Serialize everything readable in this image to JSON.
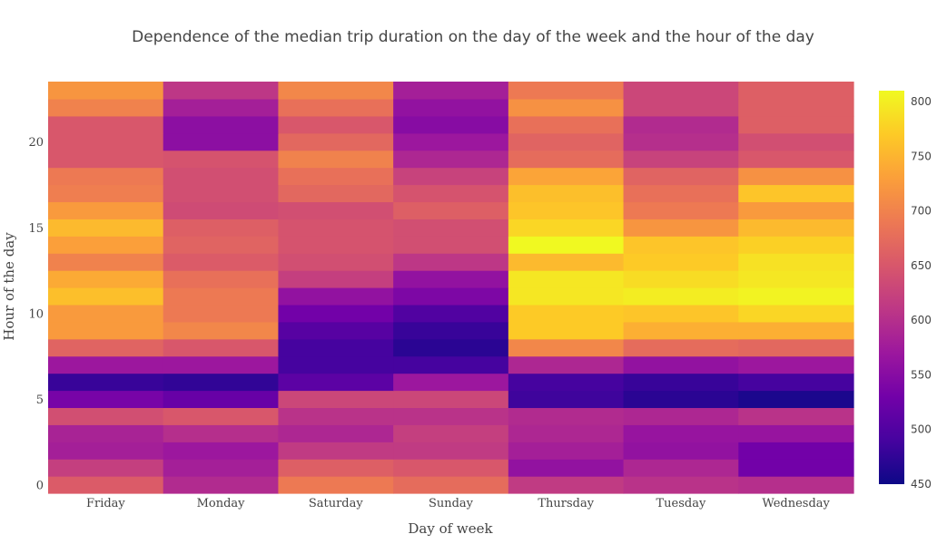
{
  "chart_data": {
    "type": "heatmap",
    "title": "Dependence of the median trip duration on the day of the week and the hour of the day",
    "xlabel": "Day of week",
    "ylabel": "Hour of the day",
    "categories": [
      "Friday",
      "Monday",
      "Saturday",
      "Sunday",
      "Thursday",
      "Tuesday",
      "Wednesday"
    ],
    "y": [
      0,
      1,
      2,
      3,
      4,
      5,
      6,
      7,
      8,
      9,
      10,
      11,
      12,
      13,
      14,
      15,
      16,
      17,
      18,
      19,
      20,
      21,
      22,
      23
    ],
    "yticks": [
      0,
      5,
      10,
      15,
      20
    ],
    "ylim": [
      -0.5,
      23.5
    ],
    "colorscale": "plasma",
    "zlim": [
      450,
      810
    ],
    "colorbar_ticks": [
      450,
      500,
      550,
      600,
      650,
      700,
      750,
      800
    ],
    "z": [
      [
        655,
        595,
        690,
        675,
        615,
        605,
        600
      ],
      [
        620,
        580,
        660,
        650,
        560,
        590,
        530
      ],
      [
        580,
        570,
        615,
        615,
        580,
        560,
        530
      ],
      [
        585,
        600,
        590,
        620,
        590,
        565,
        565
      ],
      [
        640,
        650,
        605,
        605,
        595,
        590,
        605
      ],
      [
        535,
        520,
        630,
        630,
        485,
        470,
        460
      ],
      [
        480,
        475,
        510,
        570,
        490,
        480,
        490
      ],
      [
        570,
        570,
        490,
        490,
        590,
        560,
        570
      ],
      [
        665,
        650,
        490,
        470,
        705,
        675,
        670
      ],
      [
        725,
        705,
        505,
        480,
        770,
        745,
        745
      ],
      [
        725,
        690,
        530,
        500,
        770,
        765,
        780
      ],
      [
        760,
        690,
        560,
        540,
        795,
        800,
        805
      ],
      [
        740,
        680,
        620,
        560,
        795,
        785,
        795
      ],
      [
        700,
        655,
        640,
        610,
        755,
        770,
        790
      ],
      [
        730,
        665,
        645,
        640,
        810,
        765,
        775
      ],
      [
        755,
        660,
        645,
        640,
        780,
        720,
        755
      ],
      [
        725,
        635,
        640,
        660,
        765,
        690,
        725
      ],
      [
        695,
        640,
        670,
        645,
        760,
        680,
        765
      ],
      [
        690,
        640,
        680,
        625,
        735,
        665,
        715
      ],
      [
        650,
        645,
        700,
        590,
        675,
        625,
        650
      ],
      [
        650,
        555,
        670,
        570,
        665,
        600,
        640
      ],
      [
        650,
        555,
        650,
        550,
        680,
        595,
        660
      ],
      [
        700,
        580,
        680,
        560,
        715,
        630,
        660
      ],
      [
        720,
        610,
        705,
        580,
        690,
        630,
        660
      ]
    ]
  }
}
